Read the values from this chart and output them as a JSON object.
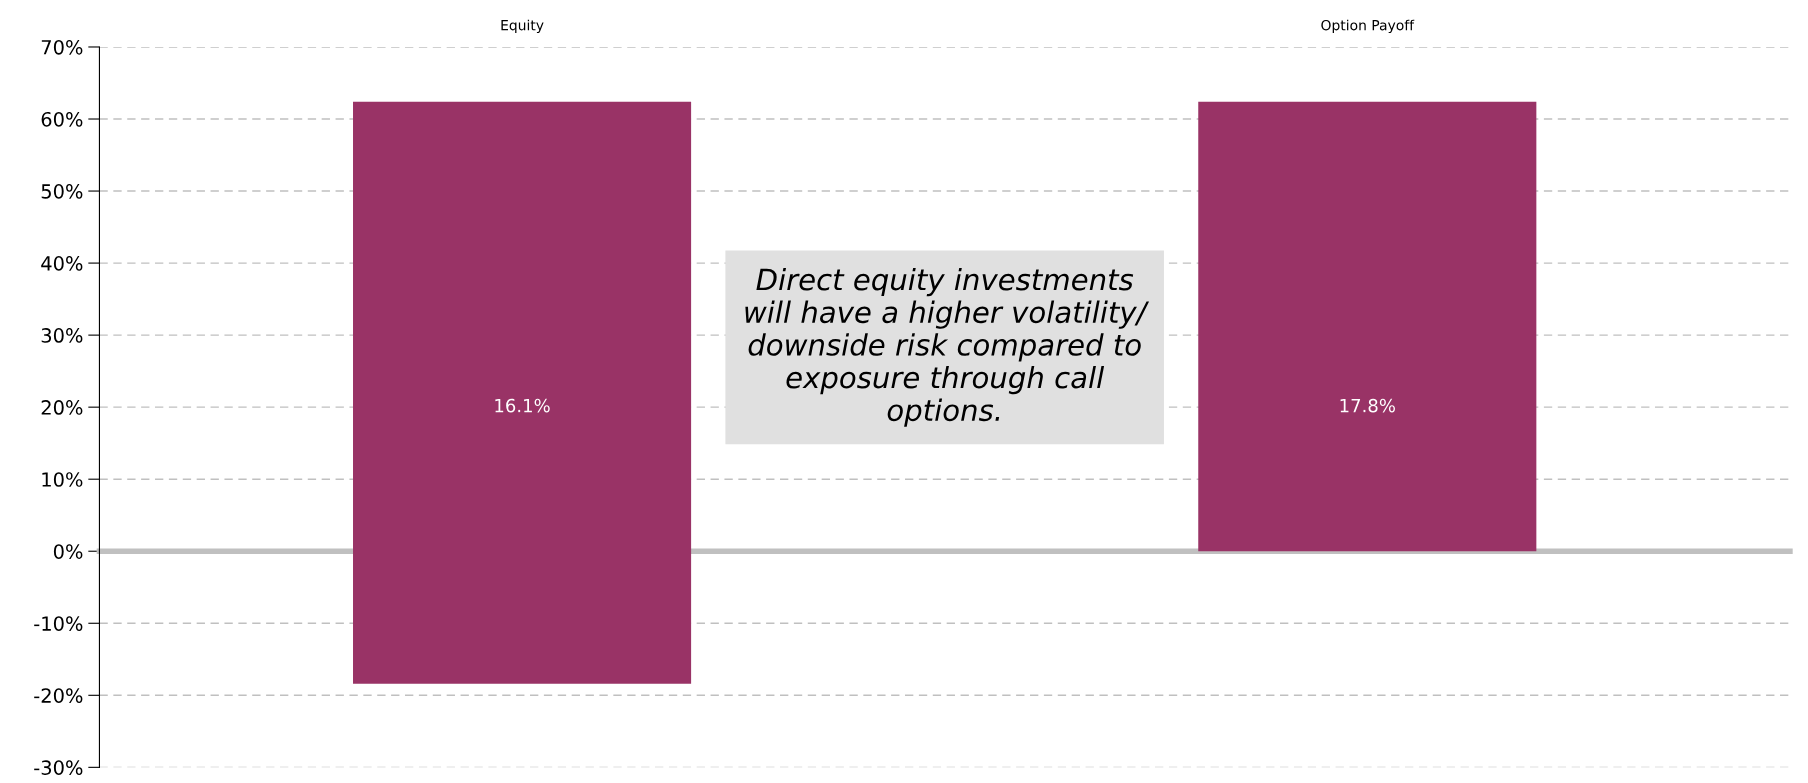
{
  "chart_data": {
    "type": "bar",
    "categories": [
      "Equity",
      "Option Payoff"
    ],
    "base": [
      -18.4,
      0
    ],
    "values": [
      80.8,
      62.4
    ],
    "color": "#993366",
    "ylim": [
      -30,
      70
    ],
    "yticks": [
      {
        "value": -30,
        "label": "-30%"
      },
      {
        "value": -20,
        "label": "-20%"
      },
      {
        "value": -10,
        "label": "-10%"
      },
      {
        "value": 0,
        "label": "0%"
      },
      {
        "value": 10,
        "label": "10%"
      },
      {
        "value": 20,
        "label": "20%"
      },
      {
        "value": 30,
        "label": "30%"
      },
      {
        "value": 40,
        "label": "40%"
      },
      {
        "value": 50,
        "label": "50%"
      },
      {
        "value": 60,
        "label": "60%"
      },
      {
        "value": 70,
        "label": "70%"
      }
    ],
    "grid": "y",
    "annotations": [
      "16.1%",
      "17.8%",
      "Direct equity investments will have a higher volatility/ downside risk compared to exposure through call options."
    ]
  }
}
